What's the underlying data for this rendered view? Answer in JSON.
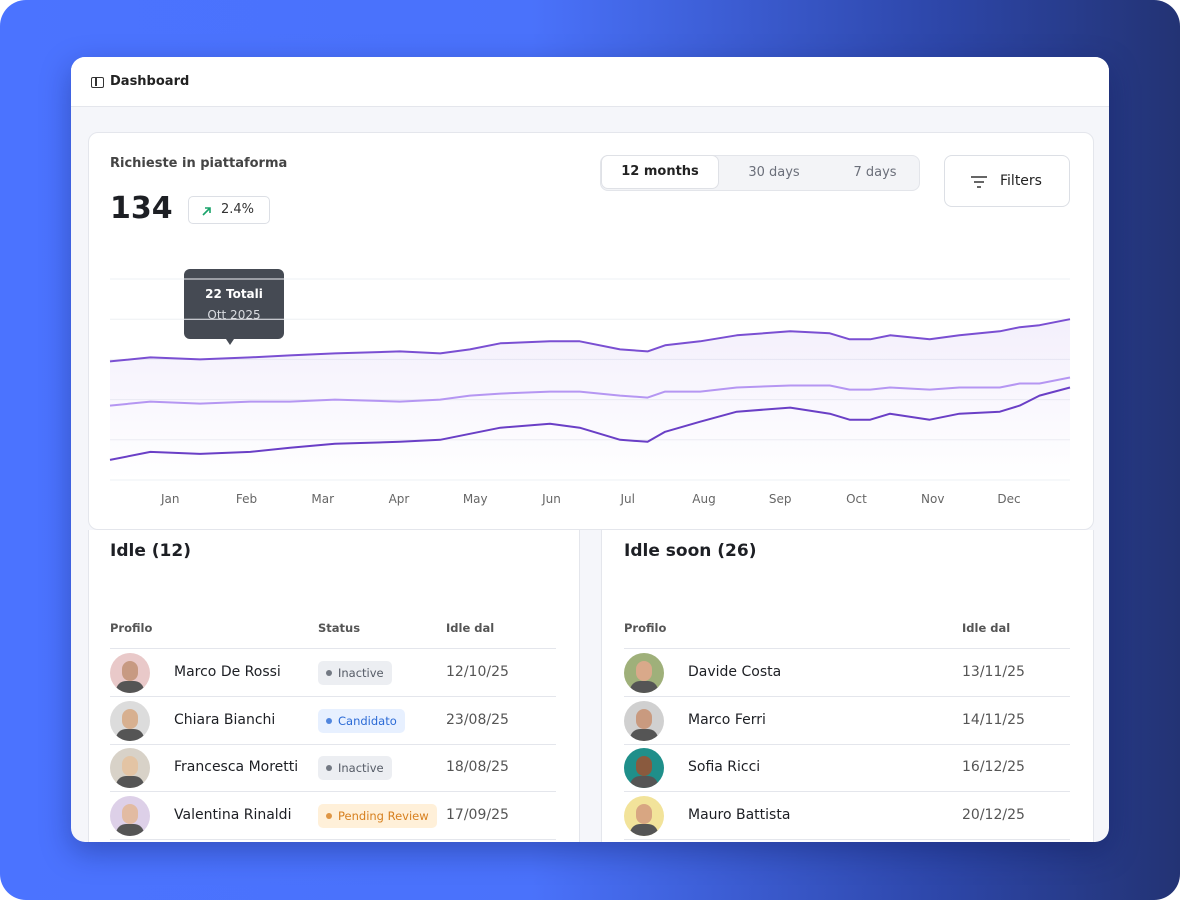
{
  "header": {
    "title": "Dashboard"
  },
  "chart_panel": {
    "title": "Richieste in piattaforma",
    "total": 134,
    "change": "2.4%",
    "tabs": [
      "12 months",
      "30 days",
      "7 days"
    ],
    "filters": "Filters"
  },
  "chart_data": {
    "type": "line",
    "x": [
      0.21,
      0.74,
      1.39,
      2.05,
      2.57,
      3.16,
      4.01,
      4.54,
      4.93,
      5.33,
      5.98,
      6.37,
      6.9,
      7.26,
      7.49,
      7.95,
      8.43,
      9.13,
      9.65,
      9.91,
      10.18,
      10.44,
      10.96,
      11.35,
      11.88,
      12.14,
      12.4,
      12.8
    ],
    "xlim": [
      0.21,
      12.8
    ],
    "xticks": [
      {
        "value": 1,
        "label": "Jan"
      },
      {
        "value": 2,
        "label": "Feb"
      },
      {
        "value": 3,
        "label": "Mar"
      },
      {
        "value": 4,
        "label": "Apr"
      },
      {
        "value": 5,
        "label": "May"
      },
      {
        "value": 6,
        "label": "Jun"
      },
      {
        "value": 7,
        "label": "Jul"
      },
      {
        "value": 8,
        "label": "Aug"
      },
      {
        "value": 9,
        "label": "Sep"
      },
      {
        "value": 10,
        "label": "Oct"
      },
      {
        "value": 11,
        "label": "Nov"
      },
      {
        "value": 12,
        "label": "Dec"
      }
    ],
    "ylim": [
      0,
      100
    ],
    "yticks": [
      0,
      20,
      40,
      60,
      80,
      100
    ],
    "grid": true,
    "series": [
      {
        "color": "#7a4fd2",
        "values": [
          59,
          61,
          60,
          61,
          62,
          63,
          64,
          63,
          65,
          68,
          69,
          69,
          65,
          64,
          67,
          69,
          72,
          74,
          73,
          70,
          70,
          72,
          70,
          72,
          74,
          76,
          77,
          80
        ]
      },
      {
        "color": "#b596f2",
        "values": [
          37,
          39,
          38,
          39,
          39,
          40,
          39,
          40,
          42,
          43,
          44,
          44,
          42,
          41,
          44,
          44,
          46,
          47,
          47,
          45,
          45,
          46,
          45,
          46,
          46,
          48,
          48,
          51
        ]
      },
      {
        "color": "#6a3fc6",
        "values": [
          10,
          14,
          13,
          14,
          16,
          18,
          19,
          20,
          23,
          26,
          28,
          26,
          20,
          19,
          24,
          29,
          34,
          36,
          33,
          30,
          30,
          33,
          30,
          33,
          34,
          37,
          42,
          46
        ]
      }
    ],
    "annotation": {
      "title": "22 Totali",
      "subtitle": "Ott 2025"
    }
  },
  "idle": {
    "title": "Idle (12)",
    "columns": [
      "Profilo",
      "Status",
      "Idle dal"
    ],
    "rows": [
      {
        "name": "Marco De Rossi",
        "status": "Inactive",
        "date": "12/10/25"
      },
      {
        "name": "Chiara Bianchi",
        "status": "Candidato",
        "date": "23/08/25"
      },
      {
        "name": "Francesca Moretti",
        "status": "Inactive",
        "date": "18/08/25"
      },
      {
        "name": "Valentina Rinaldi",
        "status": "Pending Review",
        "date": "17/09/25"
      }
    ]
  },
  "idle_soon": {
    "title": "Idle soon (26)",
    "columns": [
      "Profilo",
      "Idle dal"
    ],
    "rows": [
      {
        "name": "Davide Costa",
        "date": "13/11/25"
      },
      {
        "name": "Marco Ferri",
        "date": "14/11/25"
      },
      {
        "name": "Sofia Ricci",
        "date": "16/12/25"
      },
      {
        "name": "Mauro Battista",
        "date": "20/12/25"
      }
    ]
  }
}
